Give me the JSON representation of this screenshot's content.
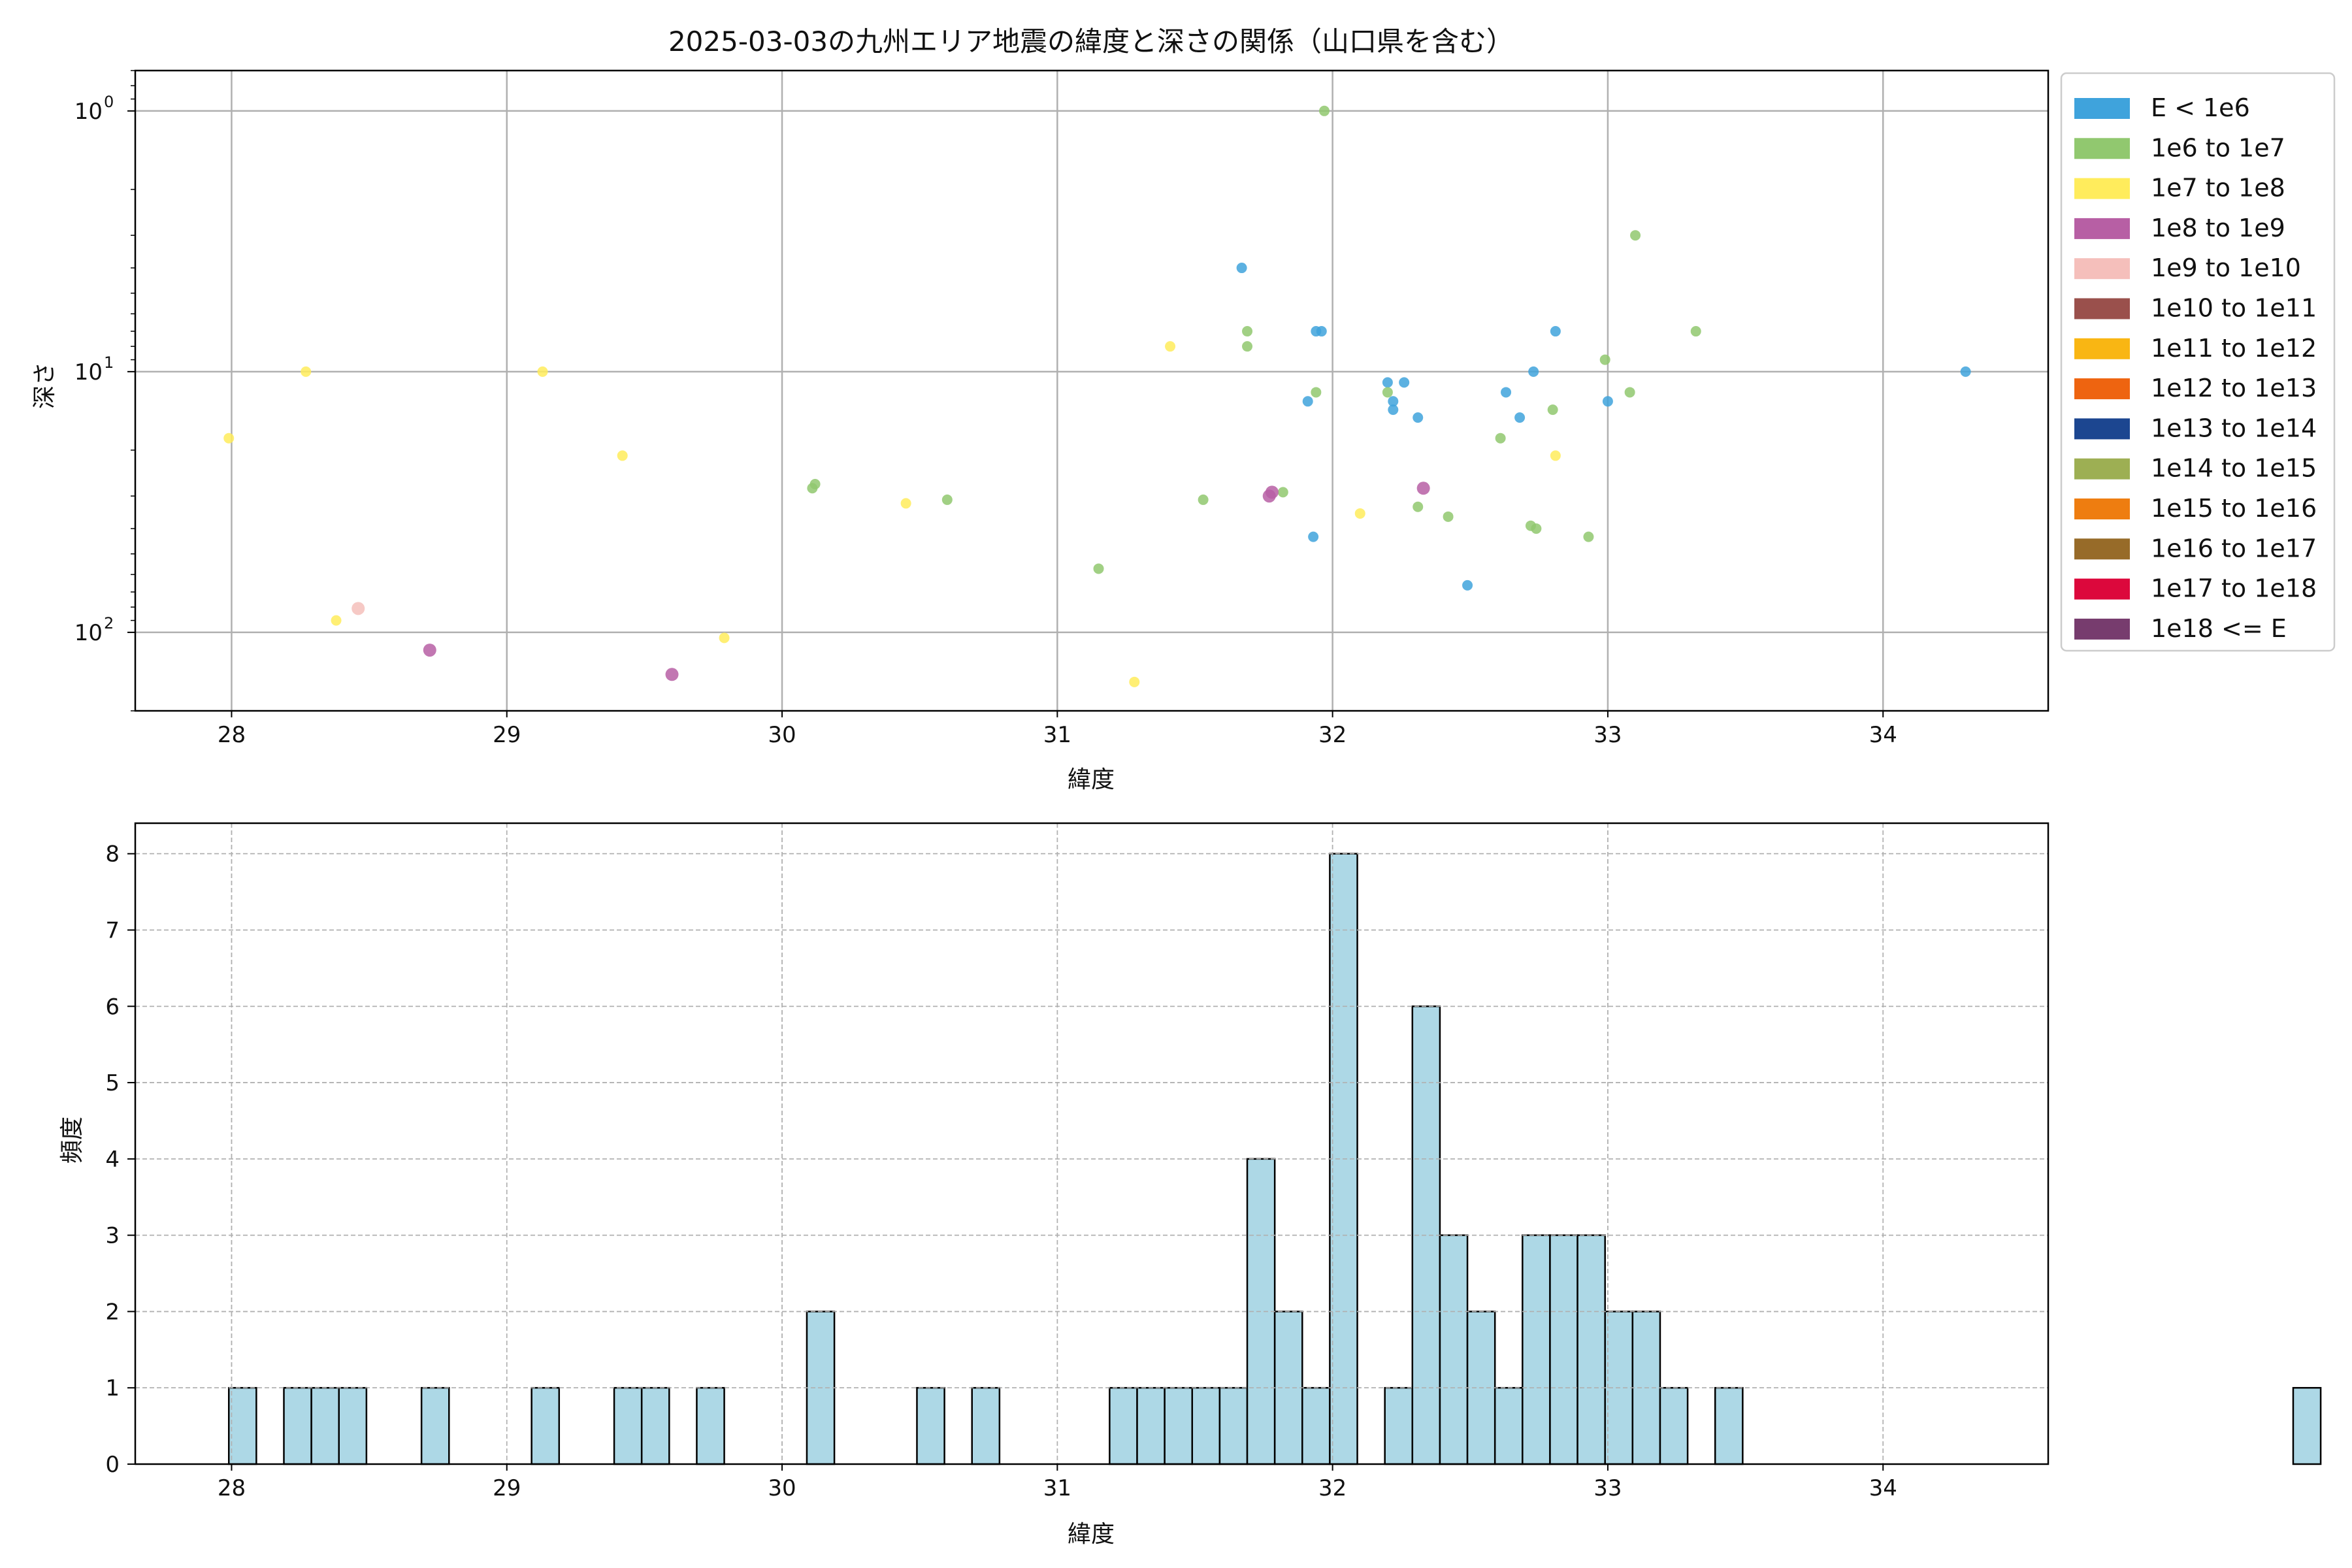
{
  "figure": {
    "title": "2025-03-03の九州エリア地震の緯度と深さの関係（山口県を含む）"
  },
  "legend": {
    "placement": "outside-right-top",
    "entries": [
      {
        "label": "E < 1e6",
        "color": "#3fa3dc"
      },
      {
        "label": "1e6 to 1e7",
        "color": "#91c86f"
      },
      {
        "label": "1e7 to 1e8",
        "color": "#ffec5c"
      },
      {
        "label": "1e8 to 1e9",
        "color": "#b75fa4"
      },
      {
        "label": "1e9 to 1e10",
        "color": "#f5bfbb"
      },
      {
        "label": "1e10 to 1e11",
        "color": "#9a504c"
      },
      {
        "label": "1e11 to 1e12",
        "color": "#f9b613"
      },
      {
        "label": "1e12 to 1e13",
        "color": "#ee6410"
      },
      {
        "label": "1e13 to 1e14",
        "color": "#1c4690"
      },
      {
        "label": "1e14 to 1e15",
        "color": "#9daf53"
      },
      {
        "label": "1e15 to 1e16",
        "color": "#ee7d10"
      },
      {
        "label": "1e16 to 1e17",
        "color": "#976b29"
      },
      {
        "label": "1e17 to 1e18",
        "color": "#dc083c"
      },
      {
        "label": "1e18 <= E",
        "color": "#773c6e"
      }
    ]
  },
  "chart_data": [
    {
      "type": "scatter",
      "xlabel": "緯度",
      "ylabel": "深さ",
      "xlim": [
        27.65,
        34.6
      ],
      "ylim": [
        200,
        0.7
      ],
      "yscale": "log-inverted",
      "xticks": [
        "28",
        "29",
        "30",
        "31",
        "32",
        "33",
        "34"
      ],
      "yticks": [
        {
          "value": 1,
          "base": "10",
          "exp": "0"
        },
        {
          "value": 10,
          "base": "10",
          "exp": "1"
        },
        {
          "value": 100,
          "base": "10",
          "exp": "2"
        }
      ],
      "grid": true,
      "series": [
        {
          "class": 0,
          "points": [
            [
              31.67,
              4
            ],
            [
              31.94,
              7
            ],
            [
              31.96,
              7
            ],
            [
              32.81,
              7
            ],
            [
              32.2,
              11
            ],
            [
              32.26,
              11
            ],
            [
              32.22,
              13
            ],
            [
              32.22,
              14
            ],
            [
              31.91,
              13
            ],
            [
              32.31,
              15
            ],
            [
              32.63,
              12
            ],
            [
              32.68,
              15
            ],
            [
              32.73,
              10
            ],
            [
              33.0,
              13
            ],
            [
              34.3,
              10
            ],
            [
              31.93,
              43
            ],
            [
              32.49,
              66
            ]
          ]
        },
        {
          "class": 1,
          "points": [
            [
              31.97,
              1
            ],
            [
              33.1,
              3
            ],
            [
              31.69,
              7
            ],
            [
              33.32,
              7
            ],
            [
              31.69,
              8
            ],
            [
              32.99,
              9
            ],
            [
              31.94,
              12
            ],
            [
              32.2,
              12
            ],
            [
              33.08,
              12
            ],
            [
              32.8,
              14
            ],
            [
              32.61,
              18
            ],
            [
              30.12,
              27
            ],
            [
              30.11,
              28
            ],
            [
              31.82,
              29
            ],
            [
              30.6,
              31
            ],
            [
              31.53,
              31
            ],
            [
              32.31,
              33
            ],
            [
              32.42,
              36
            ],
            [
              32.72,
              39
            ],
            [
              32.74,
              40
            ],
            [
              32.93,
              43
            ],
            [
              31.15,
              57
            ]
          ]
        },
        {
          "class": 2,
          "points": [
            [
              28.27,
              10
            ],
            [
              29.13,
              10
            ],
            [
              31.41,
              8
            ],
            [
              27.99,
              18
            ],
            [
              29.42,
              21
            ],
            [
              32.81,
              21
            ],
            [
              30.45,
              32
            ],
            [
              32.1,
              35
            ],
            [
              28.38,
              90
            ],
            [
              29.79,
              105
            ],
            [
              31.28,
              155
            ]
          ]
        },
        {
          "class": 3,
          "points": [
            [
              31.78,
              29
            ],
            [
              32.33,
              28
            ],
            [
              31.77,
              30
            ],
            [
              28.72,
              117
            ],
            [
              29.6,
              145
            ]
          ]
        },
        {
          "class": 4,
          "points": [
            [
              28.46,
              81
            ]
          ]
        }
      ]
    },
    {
      "type": "bar",
      "subtype": "histogram",
      "xlabel": "緯度",
      "ylabel": "頻度",
      "xlim": [
        27.65,
        34.6
      ],
      "ylim": [
        0,
        8.4
      ],
      "xticks": [
        "28",
        "29",
        "30",
        "31",
        "32",
        "33",
        "34"
      ],
      "yticks": [
        "0",
        "1",
        "2",
        "3",
        "4",
        "5",
        "6",
        "7",
        "8"
      ],
      "grid": true,
      "bar_color": "#add8e6",
      "bins_start": 27.99,
      "bin_width": 0.1,
      "counts": [
        1,
        0,
        1,
        1,
        1,
        0,
        0,
        1,
        0,
        0,
        0,
        1,
        0,
        0,
        1,
        1,
        0,
        1,
        0,
        0,
        0,
        2,
        0,
        0,
        0,
        1,
        0,
        1,
        0,
        0,
        0,
        0,
        1,
        1,
        1,
        1,
        1,
        4,
        2,
        1,
        8,
        0,
        1,
        6,
        3,
        2,
        1,
        3,
        3,
        3,
        2,
        2,
        1,
        0,
        1,
        0,
        0,
        0,
        0,
        0,
        0,
        0,
        0,
        0,
        0,
        0,
        0,
        0,
        0,
        0,
        0,
        0,
        0,
        0,
        0,
        1
      ]
    }
  ]
}
